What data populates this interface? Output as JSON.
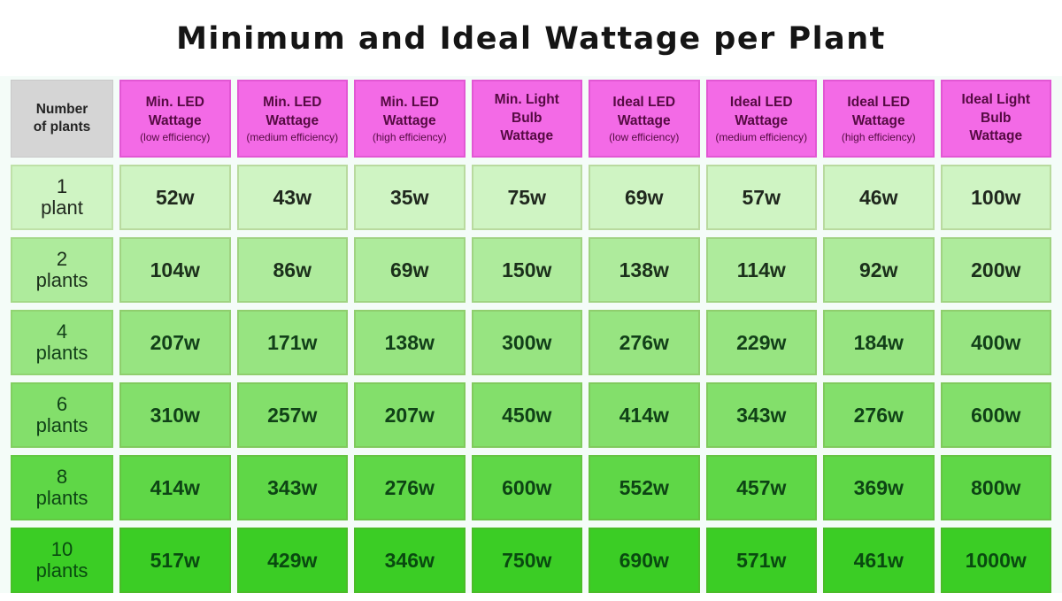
{
  "title": "Minimum and Ideal Wattage per Plant",
  "table": {
    "corner": "Number\nof plants",
    "headers": [
      {
        "label": "Min. LED\nWattage",
        "sub": "(low efficiency)"
      },
      {
        "label": "Min. LED\nWattage",
        "sub": "(medium efficiency)"
      },
      {
        "label": "Min. LED\nWattage",
        "sub": "(high efficiency)"
      },
      {
        "label": "Min. Light\nBulb\nWattage",
        "sub": ""
      },
      {
        "label": "Ideal LED\nWattage",
        "sub": "(low efficiency)"
      },
      {
        "label": "Ideal LED\nWattage",
        "sub": "(medium efficiency)"
      },
      {
        "label": "Ideal LED\nWattage",
        "sub": "(high efficiency)"
      },
      {
        "label": "Ideal Light\nBulb\nWattage",
        "sub": ""
      }
    ],
    "rows": [
      {
        "count": "1",
        "unit": "plant",
        "bg": "#cff4c3",
        "fg": "#20281e",
        "values": [
          "52w",
          "43w",
          "35w",
          "75w",
          "69w",
          "57w",
          "46w",
          "100w"
        ]
      },
      {
        "count": "2",
        "unit": "plants",
        "bg": "#aeeb9c",
        "fg": "#1b301b",
        "values": [
          "104w",
          "86w",
          "69w",
          "150w",
          "138w",
          "114w",
          "92w",
          "200w"
        ]
      },
      {
        "count": "4",
        "unit": "plants",
        "bg": "#97e481",
        "fg": "#123f19",
        "values": [
          "207w",
          "171w",
          "138w",
          "300w",
          "276w",
          "229w",
          "184w",
          "400w"
        ]
      },
      {
        "count": "6",
        "unit": "plants",
        "bg": "#83df6b",
        "fg": "#104117",
        "values": [
          "310w",
          "257w",
          "207w",
          "450w",
          "414w",
          "343w",
          "276w",
          "600w"
        ]
      },
      {
        "count": "8",
        "unit": "plants",
        "bg": "#5fd747",
        "fg": "#0d4414",
        "values": [
          "414w",
          "343w",
          "276w",
          "600w",
          "552w",
          "457w",
          "369w",
          "800w"
        ]
      },
      {
        "count": "10",
        "unit": "plants",
        "bg": "#3bcd25",
        "fg": "#094a10",
        "values": [
          "517w",
          "429w",
          "346w",
          "750w",
          "690w",
          "571w",
          "461w",
          "1000w"
        ]
      }
    ]
  },
  "colors": {
    "header_pink": "#f36ae6",
    "header_text": "#550a42",
    "corner_gray": "#d5d5d5",
    "title_text": "#151515"
  },
  "chart_data": {
    "type": "table",
    "title": "Minimum and Ideal Wattage per Plant",
    "columns": [
      "Number of plants",
      "Min. LED Wattage (low efficiency)",
      "Min. LED Wattage (medium efficiency)",
      "Min. LED Wattage (high efficiency)",
      "Min. Light Bulb Wattage",
      "Ideal LED Wattage (low efficiency)",
      "Ideal LED Wattage (medium efficiency)",
      "Ideal LED Wattage (high efficiency)",
      "Ideal Light Bulb Wattage"
    ],
    "unit": "watts",
    "rows": [
      {
        "plants": 1,
        "min_led_low": 52,
        "min_led_medium": 43,
        "min_led_high": 35,
        "min_bulb": 75,
        "ideal_led_low": 69,
        "ideal_led_medium": 57,
        "ideal_led_high": 46,
        "ideal_bulb": 100
      },
      {
        "plants": 2,
        "min_led_low": 104,
        "min_led_medium": 86,
        "min_led_high": 69,
        "min_bulb": 150,
        "ideal_led_low": 138,
        "ideal_led_medium": 114,
        "ideal_led_high": 92,
        "ideal_bulb": 200
      },
      {
        "plants": 4,
        "min_led_low": 207,
        "min_led_medium": 171,
        "min_led_high": 138,
        "min_bulb": 300,
        "ideal_led_low": 276,
        "ideal_led_medium": 229,
        "ideal_led_high": 184,
        "ideal_bulb": 400
      },
      {
        "plants": 6,
        "min_led_low": 310,
        "min_led_medium": 257,
        "min_led_high": 207,
        "min_bulb": 450,
        "ideal_led_low": 414,
        "ideal_led_medium": 343,
        "ideal_led_high": 276,
        "ideal_bulb": 600
      },
      {
        "plants": 8,
        "min_led_low": 414,
        "min_led_medium": 343,
        "min_led_high": 276,
        "min_bulb": 600,
        "ideal_led_low": 552,
        "ideal_led_medium": 457,
        "ideal_led_high": 369,
        "ideal_bulb": 800
      },
      {
        "plants": 10,
        "min_led_low": 517,
        "min_led_medium": 429,
        "min_led_high": 346,
        "min_bulb": 750,
        "ideal_led_low": 690,
        "ideal_led_medium": 571,
        "ideal_led_high": 461,
        "ideal_bulb": 1000
      }
    ]
  }
}
